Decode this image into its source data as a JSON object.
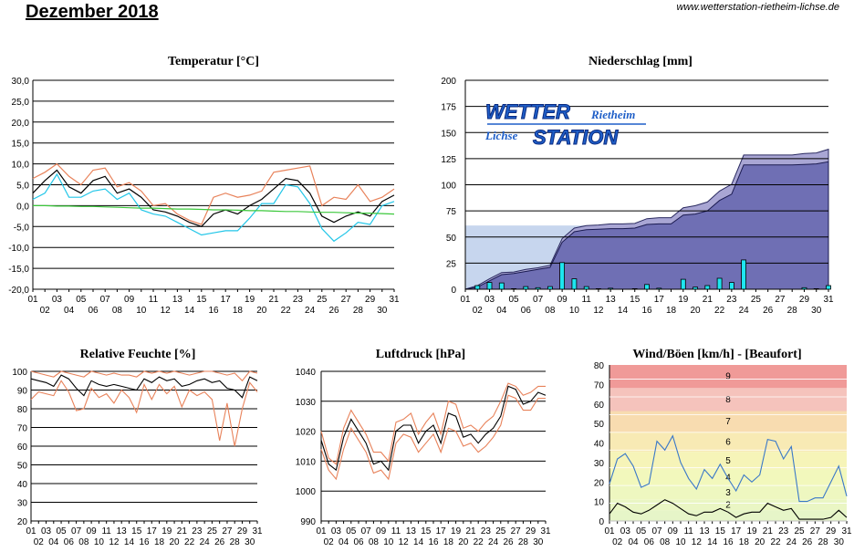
{
  "page": {
    "title": "Dezember 2018",
    "url": "www.wetterstation-rietheim-lichse.de"
  },
  "logo": {
    "wetter": "WETTER",
    "station": "STATION",
    "rietheim": "Rietheim",
    "lichse": "Lichse"
  },
  "chart_data": [
    {
      "id": "temperature",
      "type": "line",
      "title": "Temperatur [°C]",
      "ylim": [
        -20,
        30
      ],
      "yticks": [
        "30,0",
        "25,0",
        "20,0",
        "15,0",
        "10,0",
        "5,0",
        "0,0",
        "-5,0",
        "-10,0",
        "-15,0",
        "-20,0"
      ],
      "x_top": [
        "01",
        "03",
        "05",
        "07",
        "09",
        "11",
        "13",
        "15",
        "17",
        "19",
        "21",
        "23",
        "25",
        "27",
        "29",
        "31"
      ],
      "x_bottom": [
        "02",
        "04",
        "06",
        "08",
        "10",
        "12",
        "14",
        "16",
        "18",
        "20",
        "22",
        "24",
        "26",
        "28",
        "30"
      ],
      "grid": true,
      "series": [
        {
          "color": "#000000",
          "values": [
            3.0,
            6.0,
            8.5,
            4.5,
            3.0,
            6.0,
            7.0,
            3.0,
            4.0,
            2.0,
            -1.0,
            -1.5,
            -2.5,
            -4.0,
            -5.0,
            -2.0,
            -1.0,
            -2.0,
            0.0,
            1.5,
            4.0,
            6.5,
            6.0,
            3.0,
            -2.5,
            -4.0,
            -2.5,
            -1.5,
            -2.5,
            1.0,
            2.5
          ]
        },
        {
          "color": "#e8825a",
          "values": [
            6.5,
            8.0,
            10.0,
            7.0,
            5.0,
            8.5,
            9.0,
            4.5,
            5.5,
            3.5,
            0.0,
            0.5,
            -2.0,
            -3.5,
            -4.5,
            2.0,
            3.0,
            2.0,
            2.5,
            3.5,
            8.0,
            8.5,
            9.0,
            9.5,
            0.0,
            2.0,
            1.5,
            5.0,
            1.0,
            2.0,
            4.0
          ]
        },
        {
          "color": "#22c6e8",
          "values": [
            1.5,
            3.0,
            7.5,
            2.0,
            2.0,
            3.5,
            4.0,
            1.5,
            3.0,
            -1.0,
            -2.0,
            -2.5,
            -4.0,
            -5.5,
            -7.0,
            -6.5,
            -6.0,
            -6.0,
            -3.0,
            0.5,
            0.5,
            5.0,
            4.5,
            0.5,
            -5.5,
            -8.5,
            -6.5,
            -4.0,
            -4.5,
            0.0,
            1.0
          ]
        },
        {
          "color": "#3cc83c",
          "values": [
            0.0,
            0.0,
            -0.1,
            -0.1,
            -0.2,
            -0.2,
            -0.3,
            -0.4,
            -0.5,
            -0.6,
            -0.6,
            -0.7,
            -0.8,
            -0.8,
            -0.9,
            -1.0,
            -1.0,
            -1.1,
            -1.2,
            -1.2,
            -1.3,
            -1.4,
            -1.4,
            -1.5,
            -1.6,
            -1.6,
            -1.7,
            -1.8,
            -1.8,
            -1.9,
            -2.0
          ]
        }
      ]
    },
    {
      "id": "precipitation",
      "type": "bar",
      "title": "Niederschlag [mm]",
      "ylim": [
        0,
        200
      ],
      "yticks": [
        "200",
        "175",
        "150",
        "125",
        "100",
        "75",
        "50",
        "25",
        "0"
      ],
      "x_top": [
        "01",
        "03",
        "05",
        "07",
        "09",
        "11",
        "13",
        "15",
        "17",
        "19",
        "21",
        "23",
        "25",
        "27",
        "29",
        "31"
      ],
      "x_bottom": [
        "02",
        "04",
        "06",
        "08",
        "10",
        "12",
        "14",
        "16",
        "18",
        "20",
        "22",
        "24",
        "26",
        "28",
        "30"
      ],
      "long_term_mean": 61,
      "daily": [
        0.0,
        3.5,
        6.5,
        6.0,
        0.5,
        2.5,
        1.5,
        2.5,
        25.5,
        10.0,
        2.5,
        0.5,
        1.0,
        0.0,
        0.5,
        4.5,
        1.0,
        0.0,
        9.5,
        2.0,
        3.5,
        10.5,
        6.5,
        28.0,
        0.0,
        0.0,
        0.0,
        0.0,
        1.5,
        0.5,
        3.5
      ],
      "cumulative": [
        0.0,
        3.5,
        10.0,
        16.0,
        16.5,
        19.0,
        20.5,
        23.0,
        48.5,
        58.5,
        61.0,
        61.5,
        62.5,
        62.5,
        63.0,
        67.5,
        68.5,
        68.5,
        78.0,
        80.0,
        83.5,
        94.0,
        100.5,
        128.5,
        128.5,
        128.5,
        128.5,
        128.5,
        130.0,
        130.5,
        134.0
      ],
      "cumulative_alt": [
        0.0,
        2.0,
        8.0,
        14.0,
        15.0,
        17.0,
        19.0,
        21.0,
        45.0,
        55.0,
        57.0,
        57.5,
        58.0,
        58.0,
        58.5,
        62.0,
        62.5,
        62.5,
        71.0,
        72.0,
        75.0,
        85.0,
        91.0,
        119.0,
        119.0,
        119.0,
        119.0,
        119.0,
        119.5,
        120.0,
        122.0
      ]
    },
    {
      "id": "humidity",
      "type": "line",
      "title": "Relative Feuchte [%]",
      "ylim": [
        20,
        100
      ],
      "yticks": [
        "100",
        "90",
        "80",
        "70",
        "60",
        "50",
        "40",
        "30",
        "20"
      ],
      "x_top": [
        "01",
        "03",
        "05",
        "07",
        "09",
        "11",
        "13",
        "15",
        "17",
        "19",
        "21",
        "23",
        "25",
        "27",
        "29",
        "31"
      ],
      "x_bottom": [
        "02",
        "04",
        "06",
        "08",
        "10",
        "12",
        "14",
        "16",
        "18",
        "20",
        "22",
        "24",
        "26",
        "28",
        "30"
      ],
      "series": [
        {
          "color": "#000000",
          "values": [
            96,
            95,
            94,
            92,
            98,
            96,
            91,
            87,
            95,
            93,
            92,
            93,
            92,
            91,
            90,
            96,
            94,
            97,
            95,
            96,
            92,
            93,
            95,
            96,
            94,
            95,
            91,
            90,
            86,
            97,
            95
          ]
        },
        {
          "color": "#e8825a",
          "values": [
            100,
            99,
            98,
            97,
            100,
            99,
            98,
            97,
            100,
            99,
            98,
            99,
            98,
            98,
            97,
            100,
            99,
            100,
            99,
            100,
            99,
            98,
            99,
            100,
            100,
            99,
            98,
            99,
            95,
            100,
            99
          ]
        },
        {
          "color": "#e8825a",
          "values": [
            85,
            89,
            88,
            87,
            95,
            89,
            79,
            80,
            91,
            86,
            88,
            83,
            90,
            86,
            78,
            93,
            85,
            93,
            88,
            92,
            81,
            90,
            87,
            89,
            85,
            63,
            83,
            60,
            80,
            94,
            89
          ]
        }
      ]
    },
    {
      "id": "pressure",
      "type": "line",
      "title": "Luftdruck [hPa]",
      "ylim": [
        990,
        1040
      ],
      "yticks": [
        "1040",
        "1030",
        "1020",
        "1010",
        "1000",
        "990"
      ],
      "x_top": [
        "01",
        "03",
        "05",
        "07",
        "09",
        "11",
        "13",
        "15",
        "17",
        "19",
        "21",
        "23",
        "25",
        "27",
        "29",
        "31"
      ],
      "x_bottom": [
        "02",
        "04",
        "06",
        "08",
        "10",
        "12",
        "14",
        "16",
        "18",
        "20",
        "22",
        "24",
        "26",
        "28",
        "30"
      ],
      "series": [
        {
          "color": "#000000",
          "values": [
            1017,
            1009,
            1007,
            1018,
            1024,
            1020,
            1016,
            1009,
            1010,
            1007,
            1020,
            1022,
            1022,
            1016,
            1020,
            1022,
            1016,
            1026,
            1025,
            1018,
            1019,
            1016,
            1019,
            1021,
            1025,
            1035,
            1034,
            1029,
            1030,
            1033,
            1032
          ]
        },
        {
          "color": "#e8825a",
          "values": [
            1020,
            1011,
            1009,
            1021,
            1027,
            1023,
            1019,
            1013,
            1013,
            1010,
            1023,
            1024,
            1026,
            1019,
            1023,
            1026,
            1019,
            1030,
            1029,
            1021,
            1022,
            1020,
            1023,
            1025,
            1030,
            1036,
            1035,
            1032,
            1033,
            1035,
            1035
          ]
        },
        {
          "color": "#e8825a",
          "values": [
            1014,
            1007,
            1004,
            1014,
            1021,
            1017,
            1013,
            1006,
            1007,
            1004,
            1016,
            1019,
            1018,
            1013,
            1016,
            1019,
            1013,
            1021,
            1020,
            1015,
            1016,
            1013,
            1015,
            1018,
            1022,
            1032,
            1031,
            1027,
            1027,
            1031,
            1031
          ]
        }
      ]
    },
    {
      "id": "wind",
      "type": "line",
      "title": "Wind/Böen [km/h] - [Beaufort]",
      "ylim": [
        0,
        88
      ],
      "yticks": [
        "80",
        "70",
        "60",
        "50",
        "40",
        "30",
        "20",
        "10",
        "0"
      ],
      "x_top": [
        "01",
        "03",
        "05",
        "07",
        "09",
        "11",
        "13",
        "15",
        "17",
        "19",
        "21",
        "23",
        "25",
        "27",
        "29",
        "31"
      ],
      "x_bottom": [
        "02",
        "04",
        "06",
        "08",
        "10",
        "12",
        "14",
        "16",
        "18",
        "20",
        "22",
        "24",
        "26",
        "28",
        "30"
      ],
      "beaufort_labels": [
        "2",
        "3",
        "4",
        "5",
        "6",
        "7",
        "8",
        "9"
      ],
      "series": [
        {
          "color": "#3a78c8",
          "values": [
            21,
            35,
            38,
            31,
            19,
            21,
            45,
            40,
            48,
            33,
            24,
            18,
            29,
            24,
            32,
            24,
            17,
            26,
            22,
            26,
            46,
            45,
            35,
            42,
            11,
            11,
            13,
            13,
            22,
            31,
            14
          ]
        },
        {
          "color": "#000000",
          "values": [
            4,
            10,
            8,
            5,
            4,
            6,
            9,
            12,
            10,
            7,
            4,
            3,
            5,
            5,
            7,
            5,
            2,
            4,
            5,
            5,
            10,
            8,
            6,
            7,
            1,
            1,
            1,
            1,
            2,
            6,
            2
          ]
        }
      ]
    }
  ]
}
